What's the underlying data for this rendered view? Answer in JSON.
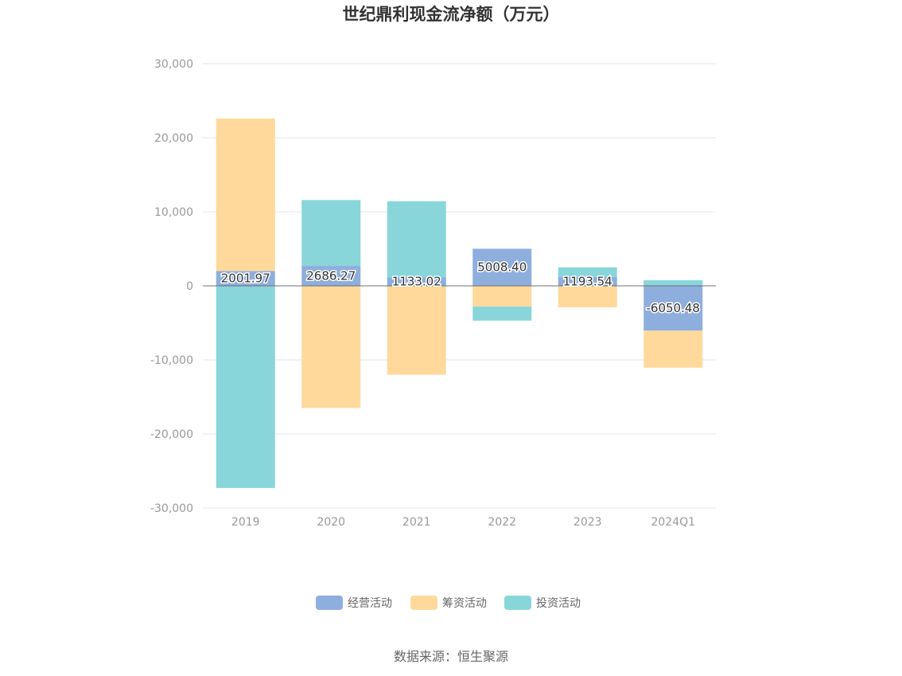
{
  "chart_data": {
    "type": "bar",
    "stacked": true,
    "title": "世纪鼎利现金流净额（万元）",
    "categories": [
      "2019",
      "2020",
      "2021",
      "2022",
      "2023",
      "2024Q1"
    ],
    "ylim": [
      -30000,
      30000
    ],
    "yticks": [
      30000,
      20000,
      10000,
      0,
      -10000,
      -20000,
      -30000
    ],
    "ytick_labels": [
      "30,000",
      "20,000",
      "10,000",
      "0",
      "-10,000",
      "-20,000",
      "-30,000"
    ],
    "grid": true,
    "legend_position": "bottom",
    "series": [
      {
        "name": "经营活动",
        "color": "#8eaedd",
        "values": [
          2001.97,
          2686.27,
          1133.02,
          5008.4,
          1193.54,
          -6050.48
        ],
        "labels": [
          "2001.97",
          "2686.27",
          "1133.02",
          "5008.40",
          "1193.54",
          "-6050.48"
        ]
      },
      {
        "name": "筹资活动",
        "color": "#ffd99b",
        "values": [
          20600,
          -16500,
          -12000,
          -2800,
          -2900,
          -5000
        ]
      },
      {
        "name": "投资活动",
        "color": "#88d6da",
        "values": [
          -27300,
          8900,
          10300,
          -1900,
          1300,
          750
        ]
      }
    ]
  },
  "source_text": "数据来源：恒生聚源"
}
